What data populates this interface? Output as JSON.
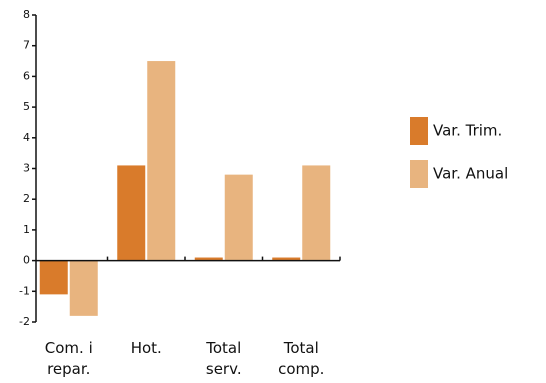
{
  "chart_data": {
    "type": "bar",
    "categories": [
      "Com. i repar.",
      "Hot.",
      "Total serv.",
      "Total comp."
    ],
    "series": [
      {
        "name": "Var. Trim.",
        "color": "#d97b2b",
        "values": [
          -1.1,
          3.1,
          0.1,
          0.1
        ]
      },
      {
        "name": "Var. Anual",
        "color": "#e8b47f",
        "values": [
          -1.8,
          6.5,
          2.8,
          3.1
        ]
      }
    ],
    "ylim": [
      -2,
      8
    ],
    "yticks": [
      -2,
      -1,
      0,
      1,
      2,
      3,
      4,
      5,
      6,
      7,
      8
    ],
    "grid": false,
    "legend": "right"
  }
}
